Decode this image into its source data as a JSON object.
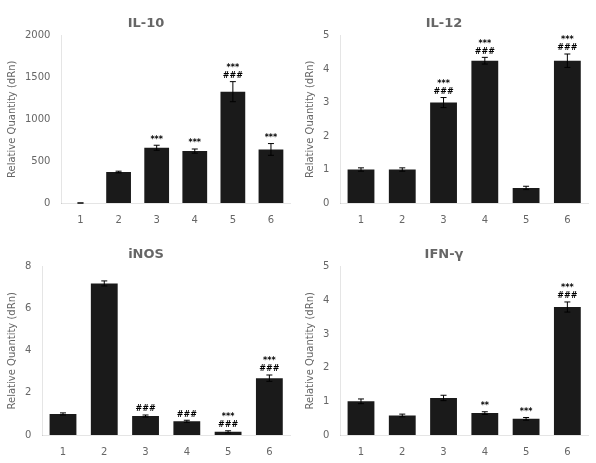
{
  "chart_data": [
    {
      "type": "bar",
      "title": "IL-10",
      "ylabel": "Relative Quantity (dRn)",
      "categories": [
        "1",
        "2",
        "3",
        "4",
        "5",
        "6"
      ],
      "values": [
        0,
        370,
        660,
        620,
        1330,
        640
      ],
      "errors": [
        0,
        10,
        30,
        25,
        120,
        70
      ],
      "ylim": [
        0,
        2000
      ],
      "yticks": [
        0,
        500,
        1000,
        1500,
        2000
      ],
      "color": "#1a1a1a",
      "grid": false,
      "annotations": [
        {
          "category": "3",
          "text": "***"
        },
        {
          "category": "4",
          "text": "***"
        },
        {
          "category": "5",
          "text": "***\n###"
        },
        {
          "category": "6",
          "text": "***"
        }
      ]
    },
    {
      "type": "bar",
      "title": "IL-12",
      "ylabel": "Relative Quantity (dRn)",
      "categories": [
        "1",
        "2",
        "3",
        "4",
        "5",
        "6"
      ],
      "values": [
        1.0,
        1.0,
        3.0,
        4.25,
        0.45,
        4.25
      ],
      "errors": [
        0.05,
        0.05,
        0.15,
        0.1,
        0.05,
        0.2
      ],
      "ylim": [
        0,
        5
      ],
      "yticks": [
        0,
        1,
        2,
        3,
        4,
        5
      ],
      "color": "#1a1a1a",
      "grid": false,
      "annotations": [
        {
          "category": "3",
          "text": "***\n###"
        },
        {
          "category": "4",
          "text": "***\n###"
        },
        {
          "category": "6",
          "text": "***\n###"
        }
      ]
    },
    {
      "type": "bar",
      "title": "iNOS",
      "ylabel": "Relative Quantity (dRn)",
      "categories": [
        "1",
        "2",
        "3",
        "4",
        "5",
        "6"
      ],
      "values": [
        1.0,
        7.2,
        0.9,
        0.65,
        0.15,
        2.7
      ],
      "errors": [
        0.05,
        0.12,
        0.05,
        0.05,
        0.05,
        0.15
      ],
      "ylim": [
        0,
        8
      ],
      "yticks": [
        0,
        2,
        4,
        6,
        8
      ],
      "color": "#1a1a1a",
      "grid": false,
      "annotations": [
        {
          "category": "3",
          "text": "###"
        },
        {
          "category": "4",
          "text": "###"
        },
        {
          "category": "5",
          "text": "***\n###"
        },
        {
          "category": "6",
          "text": "***\n###"
        }
      ]
    },
    {
      "type": "bar",
      "title": "IFN-γ",
      "ylabel": "Relative Quantity (dRn)",
      "categories": [
        "1",
        "2",
        "3",
        "4",
        "5",
        "6"
      ],
      "values": [
        1.0,
        0.58,
        1.1,
        0.65,
        0.48,
        3.8
      ],
      "errors": [
        0.07,
        0.04,
        0.08,
        0.04,
        0.04,
        0.15
      ],
      "ylim": [
        0,
        5
      ],
      "yticks": [
        0,
        1,
        2,
        3,
        4,
        5
      ],
      "color": "#1a1a1a",
      "grid": false,
      "annotations": [
        {
          "category": "4",
          "text": "**"
        },
        {
          "category": "5",
          "text": "***"
        },
        {
          "category": "6",
          "text": "***\n###"
        }
      ]
    }
  ]
}
